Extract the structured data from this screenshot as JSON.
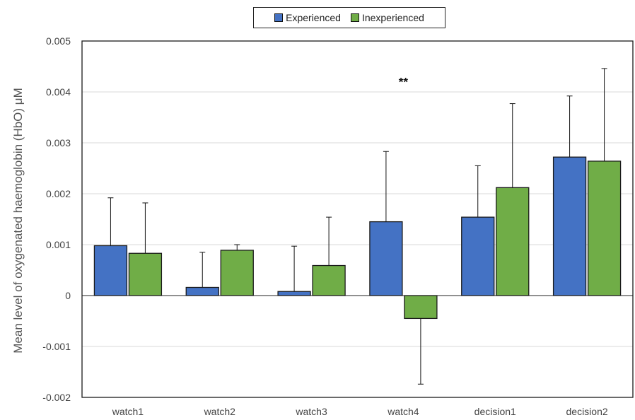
{
  "chart_data": {
    "type": "bar",
    "categories": [
      "watch1",
      "watch2",
      "watch3",
      "watch4",
      "decision1",
      "decision2"
    ],
    "series": [
      {
        "name": "Experienced",
        "color": "#4472C4",
        "values": [
          0.00098,
          0.00016,
          8e-05,
          0.00145,
          0.00154,
          0.00272
        ],
        "errors": [
          0.00094,
          0.00069,
          0.00089,
          0.00138,
          0.00101,
          0.0012
        ]
      },
      {
        "name": "Inexperienced",
        "color": "#70AD47",
        "values": [
          0.00083,
          0.00089,
          0.00059,
          -0.00045,
          0.00212,
          0.00264
        ],
        "errors": [
          0.00099,
          0.00011,
          0.00095,
          0.00129,
          0.00165,
          0.00182
        ]
      }
    ],
    "ylabel": "Mean level of oxygenated haemoglobin (HbO) μM",
    "xlabel": "",
    "ylim": [
      -0.002,
      0.005
    ],
    "yticks": [
      {
        "value": 0.005,
        "label": "0.005"
      },
      {
        "value": 0.004,
        "label": "0.004"
      },
      {
        "value": 0.003,
        "label": "0.003"
      },
      {
        "value": 0.002,
        "label": "0.002"
      },
      {
        "value": 0.001,
        "label": "0.001"
      },
      {
        "value": 0,
        "label": "0"
      },
      {
        "value": -0.001,
        "label": "-0.001"
      },
      {
        "value": -0.002,
        "label": "-0.002"
      }
    ],
    "annotations": [
      {
        "text": "**",
        "category": "watch4",
        "y": 0.0042
      }
    ],
    "grid": true,
    "legend_position": "top-center"
  }
}
